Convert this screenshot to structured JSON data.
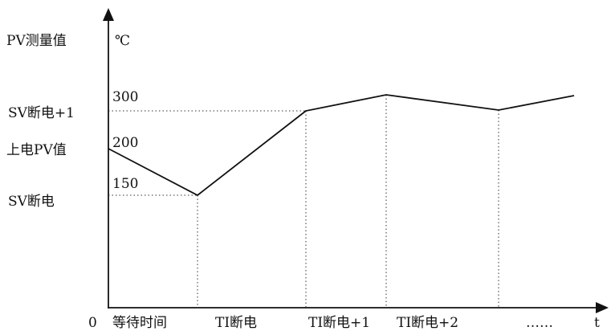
{
  "axis": {
    "y_title": "PV测量值",
    "y_unit": "℃",
    "origin": "0",
    "x_end": "t"
  },
  "y_labels": [
    "SV断电+1",
    "上电PV值",
    "SV断电"
  ],
  "y_values": [
    "300",
    "200",
    "150"
  ],
  "x_labels": [
    "等待时间",
    "TI断电",
    "TI断电+1",
    "TI断电+2",
    "……"
  ]
}
